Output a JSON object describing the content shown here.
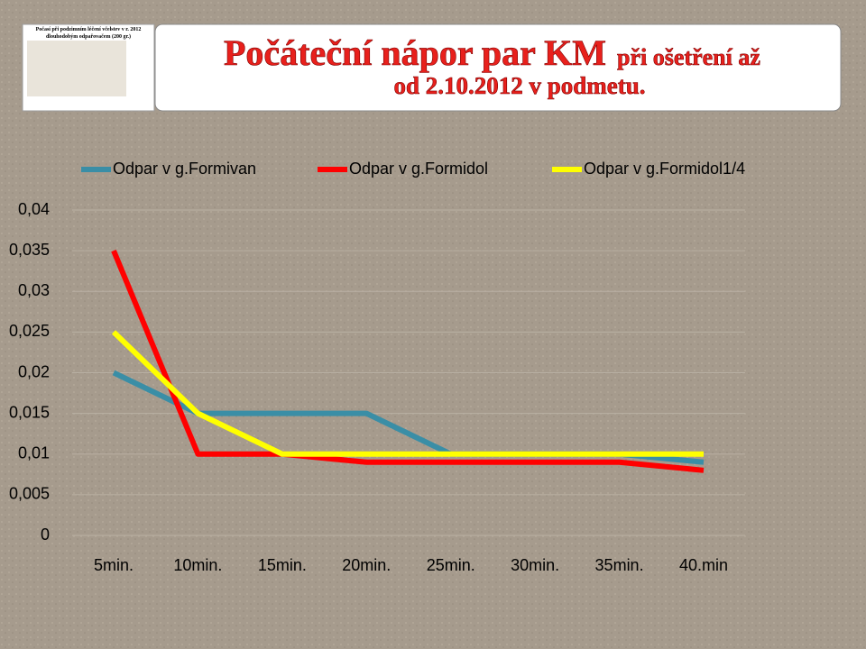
{
  "slide": {
    "title_parts": [
      "Počáteční nápor par KM",
      "při ošetření až",
      "od 2.10.2012 v podmetu."
    ],
    "thumbnail": {
      "title": [
        "Počasí při podzimním léčení včelstev v r. 2012",
        "dlouhodobým odpařovačem (200 gr.)"
      ]
    }
  },
  "chart_data": {
    "type": "line",
    "categories": [
      "5min.",
      "10min.",
      "15min.",
      "20min.",
      "25min.",
      "30min.",
      "35min.",
      "40.min"
    ],
    "series": [
      {
        "name": "Odpar v g.Formivan",
        "color": "#3a8ea6",
        "values": [
          0.02,
          0.015,
          0.015,
          0.015,
          0.01,
          0.01,
          0.01,
          0.009
        ]
      },
      {
        "name": "Odpar v g.Formidol",
        "color": "#ff0000",
        "values": [
          0.035,
          0.01,
          0.01,
          0.009,
          0.009,
          0.009,
          0.009,
          0.008
        ]
      },
      {
        "name": "Odpar v g.Formidol1/4",
        "color": "#ffff00",
        "values": [
          0.025,
          0.015,
          0.01,
          0.01,
          0.01,
          0.01,
          0.01,
          0.01
        ]
      }
    ],
    "ylim": [
      0,
      0.04
    ],
    "yticks": [
      0,
      {
        "value": 0.005,
        "label": "0,005"
      },
      {
        "value": 0.01,
        "label": "0,01"
      },
      {
        "value": 0.015,
        "label": "0,015"
      },
      {
        "value": 0.02,
        "label": "0,02"
      },
      {
        "value": 0.025,
        "label": "0,025"
      },
      {
        "value": 0.03,
        "label": "0,03"
      },
      {
        "value": 0.035,
        "label": "0,035"
      },
      {
        "value": 0.04,
        "label": "0,04"
      }
    ],
    "grid": true,
    "legend": "top"
  }
}
